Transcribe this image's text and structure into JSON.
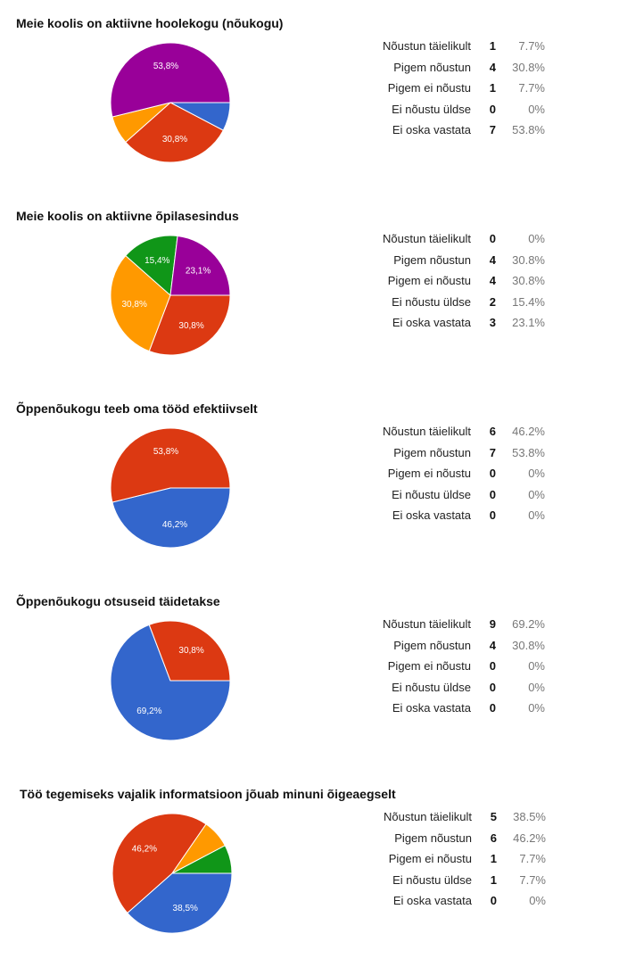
{
  "chart_data": [
    {
      "type": "pie",
      "title": "Meie koolis on aktiivne hoolekogu (nõukogu)",
      "categories": [
        "Nõustun täielikult",
        "Pigem nõustun",
        "Pigem ei nõustu",
        "Ei nõustu üldse",
        "Ei oska vastata"
      ],
      "values": [
        1,
        4,
        1,
        0,
        7
      ],
      "percents": [
        "7.7%",
        "30.8%",
        "7.7%",
        "0%",
        "53.8%"
      ],
      "slice_labels": [
        "",
        "30,8%",
        "",
        "",
        "53,8%"
      ],
      "colors": [
        "#3366cc",
        "#dc3912",
        "#ff9900",
        "#109618",
        "#990099"
      ]
    },
    {
      "type": "pie",
      "title": "Meie koolis on aktiivne õpilasesindus",
      "categories": [
        "Nõustun täielikult",
        "Pigem nõustun",
        "Pigem ei nõustu",
        "Ei nõustu üldse",
        "Ei oska vastata"
      ],
      "values": [
        0,
        4,
        4,
        2,
        3
      ],
      "percents": [
        "0%",
        "30.8%",
        "30.8%",
        "15.4%",
        "23.1%"
      ],
      "slice_labels": [
        "",
        "30,8%",
        "30,8%",
        "15,4%",
        "23,1%"
      ],
      "colors": [
        "#3366cc",
        "#dc3912",
        "#ff9900",
        "#109618",
        "#990099"
      ]
    },
    {
      "type": "pie",
      "title": "Õppenõukogu teeb oma tööd efektiivselt",
      "categories": [
        "Nõustun täielikult",
        "Pigem nõustun",
        "Pigem ei nõustu",
        "Ei nõustu üldse",
        "Ei oska vastata"
      ],
      "values": [
        6,
        7,
        0,
        0,
        0
      ],
      "percents": [
        "46.2%",
        "53.8%",
        "0%",
        "0%",
        "0%"
      ],
      "slice_labels": [
        "46,2%",
        "53,8%",
        "",
        "",
        ""
      ],
      "colors": [
        "#3366cc",
        "#dc3912",
        "#ff9900",
        "#109618",
        "#990099"
      ]
    },
    {
      "type": "pie",
      "title": "Õppenõukogu otsuseid täidetakse",
      "categories": [
        "Nõustun täielikult",
        "Pigem nõustun",
        "Pigem ei nõustu",
        "Ei nõustu üldse",
        "Ei oska vastata"
      ],
      "values": [
        9,
        4,
        0,
        0,
        0
      ],
      "percents": [
        "69.2%",
        "30.8%",
        "0%",
        "0%",
        "0%"
      ],
      "slice_labels": [
        "69,2%",
        "30,8%",
        "",
        "",
        ""
      ],
      "colors": [
        "#3366cc",
        "#dc3912",
        "#ff9900",
        "#109618",
        "#990099"
      ]
    },
    {
      "type": "pie",
      "title": "Töö tegemiseks vajalik informatsioon jõuab minuni õigeaegselt",
      "categories": [
        "Nõustun täielikult",
        "Pigem nõustun",
        "Pigem ei nõustu",
        "Ei nõustu üldse",
        "Ei oska vastata"
      ],
      "values": [
        5,
        6,
        1,
        1,
        0
      ],
      "percents": [
        "38.5%",
        "46.2%",
        "7.7%",
        "7.7%",
        "0%"
      ],
      "slice_labels": [
        "38,5%",
        "46,2%",
        "",
        "",
        ""
      ],
      "colors": [
        "#3366cc",
        "#dc3912",
        "#ff9900",
        "#109618",
        "#990099"
      ]
    }
  ]
}
